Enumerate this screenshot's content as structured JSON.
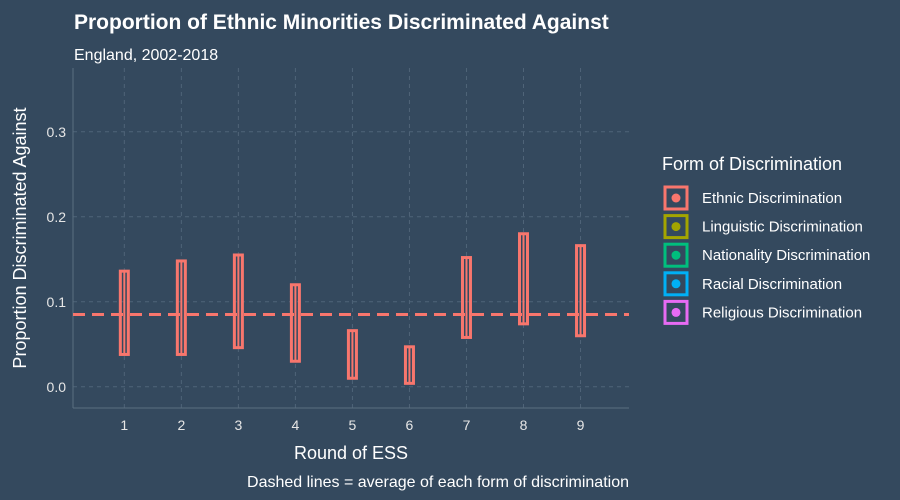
{
  "chart_data": {
    "type": "crossbar",
    "title": "Proportion of Ethnic Minorities Discriminated Against",
    "subtitle": "England, 2002-2018",
    "xlabel": "Round of ESS",
    "ylabel": "Proportion Discriminated Against",
    "caption": "Dashed lines = average of each form of discrimination",
    "x_ticks": [
      "1",
      "2",
      "3",
      "4",
      "5",
      "6",
      "7",
      "8",
      "9"
    ],
    "y_ticks": [
      "0.0",
      "0.1",
      "0.2",
      "0.3"
    ],
    "ylim": [
      -0.025,
      0.375
    ],
    "xlim": [
      0.1,
      9.85
    ],
    "grid": true,
    "legend": {
      "title": "Form of Discrimination",
      "position": "right",
      "items": [
        {
          "label": "Ethnic Discrimination",
          "color": "#f8766d"
        },
        {
          "label": "Linguistic Discrimination",
          "color": "#a3a500"
        },
        {
          "label": "Nationality Discrimination",
          "color": "#00bf7d"
        },
        {
          "label": "Racial Discrimination",
          "color": "#00b0f6"
        },
        {
          "label": "Religious Discrimination",
          "color": "#e76bf3"
        }
      ]
    },
    "series": [
      {
        "name": "Ethnic Discrimination",
        "color": "#f8766d",
        "average": 0.085,
        "points": [
          {
            "x": 1,
            "y": 0.087,
            "lower": 0.038,
            "upper": 0.136
          },
          {
            "x": 2,
            "y": 0.093,
            "lower": 0.038,
            "upper": 0.148
          },
          {
            "x": 3,
            "y": 0.1,
            "lower": 0.046,
            "upper": 0.155
          },
          {
            "x": 4,
            "y": 0.075,
            "lower": 0.03,
            "upper": 0.12
          },
          {
            "x": 5,
            "y": 0.038,
            "lower": 0.01,
            "upper": 0.066
          },
          {
            "x": 6,
            "y": 0.025,
            "lower": 0.004,
            "upper": 0.047
          },
          {
            "x": 7,
            "y": 0.105,
            "lower": 0.058,
            "upper": 0.152
          },
          {
            "x": 8,
            "y": 0.127,
            "lower": 0.074,
            "upper": 0.18
          },
          {
            "x": 9,
            "y": 0.113,
            "lower": 0.06,
            "upper": 0.166
          }
        ]
      }
    ]
  }
}
